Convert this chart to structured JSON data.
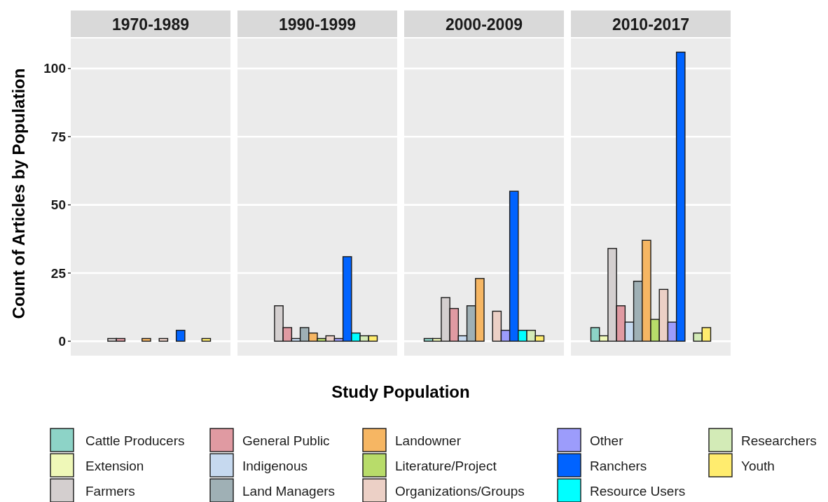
{
  "chart_data": {
    "type": "bar",
    "xlabel": "Study Population",
    "ylabel": "Count of Articles by Population",
    "categories": [
      "1970-1989",
      "1990-1999",
      "2000-2009",
      "2010-2017"
    ],
    "ylim": [
      -5.3,
      111
    ],
    "yticks": [
      0,
      25,
      50,
      75,
      100
    ],
    "grid": true,
    "legend": "bottom",
    "series": [
      {
        "name": "Cattle Producers",
        "color": "#8dd3c7",
        "values": [
          0,
          0,
          1,
          5
        ]
      },
      {
        "name": "Extension",
        "color": "#eff8b8",
        "values": [
          0,
          0,
          1,
          2
        ]
      },
      {
        "name": "Farmers",
        "color": "#d4cfcf",
        "values": [
          1,
          13,
          16,
          34
        ]
      },
      {
        "name": "General Public",
        "color": "#e09aa2",
        "values": [
          1,
          5,
          12,
          13
        ]
      },
      {
        "name": "Indigenous",
        "color": "#c6d9ef",
        "values": [
          0,
          1,
          2,
          7
        ]
      },
      {
        "name": "Land Managers",
        "color": "#9fb0b5",
        "values": [
          0,
          5,
          13,
          22
        ]
      },
      {
        "name": "Landowner",
        "color": "#f6b663",
        "values": [
          1,
          3,
          23,
          37
        ]
      },
      {
        "name": "Literature/Project",
        "color": "#b8dc6a",
        "values": [
          0,
          1,
          0,
          8
        ]
      },
      {
        "name": "Organizations/Groups",
        "color": "#ecd0c6",
        "values": [
          1,
          2,
          11,
          19
        ]
      },
      {
        "name": "Other",
        "color": "#9c9cfb",
        "values": [
          0,
          1,
          4,
          7
        ]
      },
      {
        "name": "Ranchers",
        "color": "#0063ff",
        "values": [
          4,
          31,
          55,
          106
        ]
      },
      {
        "name": "Resource Users",
        "color": "#00ffff",
        "values": [
          0,
          3,
          4,
          0
        ]
      },
      {
        "name": "Researchers",
        "color": "#d3ebb7",
        "values": [
          0,
          2,
          4,
          3
        ]
      },
      {
        "name": "Youth",
        "color": "#ffec6e",
        "values": [
          1,
          2,
          2,
          5
        ]
      }
    ]
  }
}
